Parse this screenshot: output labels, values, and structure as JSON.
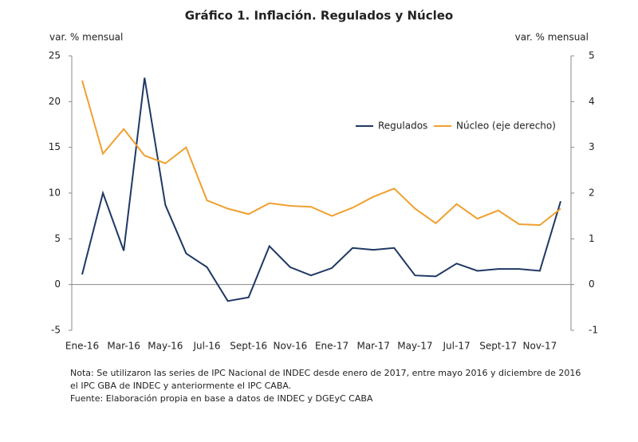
{
  "chart_data": {
    "type": "line",
    "title": "Gráfico 1. Inflación. Regulados y Núcleo",
    "y_label": "var. % mensual",
    "y2_label": "var. % mensual",
    "categories": [
      "Ene-16",
      null,
      "Mar-16",
      null,
      "May-16",
      null,
      "Jul-16",
      null,
      "Sept-16",
      null,
      "Nov-16",
      null,
      "Ene-17",
      null,
      "Mar-17",
      null,
      "May-17",
      null,
      "Jul-17",
      null,
      "Sept-17",
      null,
      "Nov-17",
      null
    ],
    "series": [
      {
        "name": "Regulados",
        "color": "#1f3864",
        "values": [
          1.1,
          10.0,
          3.7,
          22.6,
          8.7,
          3.4,
          1.9,
          -1.8,
          -1.4,
          4.2,
          1.9,
          1.0,
          1.8,
          4.0,
          3.8,
          4.0,
          1.0,
          0.9,
          2.3,
          1.5,
          1.7,
          1.7,
          1.5,
          9.1
        ]
      },
      {
        "name": "Núcleo (eje derecho)",
        "color": "#f0a030",
        "axis": "y2",
        "values": [
          4.46,
          2.86,
          3.4,
          2.82,
          2.65,
          3.0,
          1.84,
          1.66,
          1.54,
          1.78,
          1.72,
          1.7,
          1.5,
          1.68,
          1.92,
          2.1,
          1.66,
          1.34,
          1.76,
          1.44,
          1.62,
          1.32,
          1.3,
          1.66
        ]
      }
    ],
    "ylim": [
      -5,
      25
    ],
    "yticks": [
      -5,
      0,
      5,
      10,
      15,
      20,
      25
    ],
    "y2lim": [
      -1,
      5
    ],
    "y2ticks": [
      -1,
      0,
      1,
      2,
      3,
      4,
      5
    ],
    "legend": "upper-right",
    "notes": [
      "Nota: Se utilizaron las series de IPC Nacional de INDEC desde enero de 2017, entre mayo 2016 y diciembre de 2016",
      "el IPC GBA de INDEC y anteriormente el IPC CABA.",
      "Fuente: Elaboración propia en base a datos de INDEC y DGEyC CABA"
    ]
  }
}
